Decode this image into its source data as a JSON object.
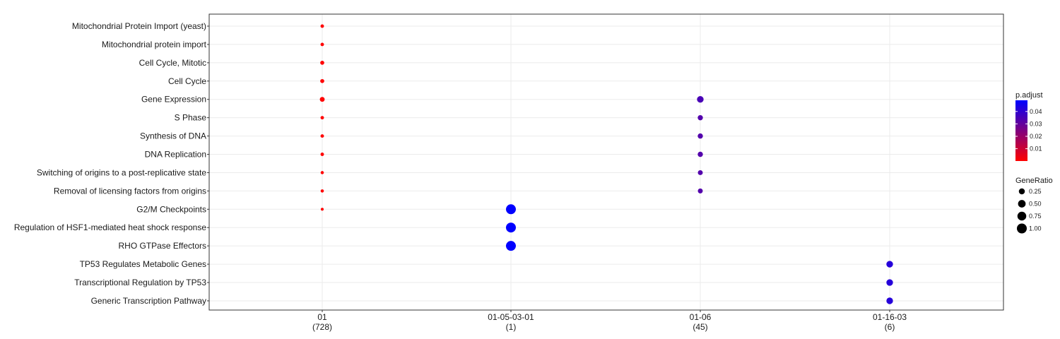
{
  "chart_data": {
    "type": "scatter",
    "title": "",
    "xlabel": "",
    "ylabel": "",
    "categories_x": [
      {
        "label": "01",
        "count": "(728)"
      },
      {
        "label": "01-05-03-01",
        "count": "(1)"
      },
      {
        "label": "01-06",
        "count": "(45)"
      },
      {
        "label": "01-16-03",
        "count": "(6)"
      }
    ],
    "categories_y": [
      "Mitochondrial Protein Import (yeast)",
      "Mitochondrial protein import",
      "Cell Cycle, Mitotic",
      "Cell Cycle",
      "Gene Expression",
      "S Phase",
      "Synthesis of DNA",
      "DNA Replication",
      "Switching of origins to a post-replicative state",
      "Removal of licensing factors from origins",
      "G2/M Checkpoints",
      "Regulation of HSF1-mediated heat shock response",
      "RHO GTPase Effectors",
      "TP53 Regulates Metabolic Genes",
      "Transcriptional Regulation by TP53",
      "Generic Transcription Pathway"
    ],
    "points": [
      {
        "x": "01",
        "y": "Mitochondrial Protein Import (yeast)",
        "gene_ratio": 0.03,
        "p_adjust": 0.0001
      },
      {
        "x": "01",
        "y": "Mitochondrial protein import",
        "gene_ratio": 0.03,
        "p_adjust": 0.0001
      },
      {
        "x": "01",
        "y": "Cell Cycle, Mitotic",
        "gene_ratio": 0.06,
        "p_adjust": 0.0001
      },
      {
        "x": "01",
        "y": "Cell Cycle",
        "gene_ratio": 0.06,
        "p_adjust": 0.0001
      },
      {
        "x": "01",
        "y": "Gene Expression",
        "gene_ratio": 0.12,
        "p_adjust": 0.0001
      },
      {
        "x": "01",
        "y": "S Phase",
        "gene_ratio": 0.03,
        "p_adjust": 0.0001
      },
      {
        "x": "01",
        "y": "Synthesis of DNA",
        "gene_ratio": 0.03,
        "p_adjust": 0.0001
      },
      {
        "x": "01",
        "y": "DNA Replication",
        "gene_ratio": 0.03,
        "p_adjust": 0.0001
      },
      {
        "x": "01",
        "y": "Switching of origins to a post-replicative state",
        "gene_ratio": 0.02,
        "p_adjust": 0.0001
      },
      {
        "x": "01",
        "y": "Removal of licensing factors from origins",
        "gene_ratio": 0.02,
        "p_adjust": 0.0001
      },
      {
        "x": "01",
        "y": "G2/M Checkpoints",
        "gene_ratio": 0.01,
        "p_adjust": 0.0001
      },
      {
        "x": "01-05-03-01",
        "y": "G2/M Checkpoints",
        "gene_ratio": 1.0,
        "p_adjust": 0.049
      },
      {
        "x": "01-05-03-01",
        "y": "Regulation of HSF1-mediated heat shock response",
        "gene_ratio": 1.0,
        "p_adjust": 0.049
      },
      {
        "x": "01-05-03-01",
        "y": "RHO GTPase Effectors",
        "gene_ratio": 1.0,
        "p_adjust": 0.049
      },
      {
        "x": "01-06",
        "y": "Gene Expression",
        "gene_ratio": 0.33,
        "p_adjust": 0.035
      },
      {
        "x": "01-06",
        "y": "S Phase",
        "gene_ratio": 0.16,
        "p_adjust": 0.033
      },
      {
        "x": "01-06",
        "y": "Synthesis of DNA",
        "gene_ratio": 0.16,
        "p_adjust": 0.033
      },
      {
        "x": "01-06",
        "y": "DNA Replication",
        "gene_ratio": 0.16,
        "p_adjust": 0.033
      },
      {
        "x": "01-06",
        "y": "Switching of origins to a post-replicative state",
        "gene_ratio": 0.13,
        "p_adjust": 0.033
      },
      {
        "x": "01-06",
        "y": "Removal of licensing factors from origins",
        "gene_ratio": 0.13,
        "p_adjust": 0.033
      },
      {
        "x": "01-16-03",
        "y": "TP53 Regulates Metabolic Genes",
        "gene_ratio": 0.33,
        "p_adjust": 0.042
      },
      {
        "x": "01-16-03",
        "y": "Transcriptional Regulation by TP53",
        "gene_ratio": 0.33,
        "p_adjust": 0.042
      },
      {
        "x": "01-16-03",
        "y": "Generic Transcription Pathway",
        "gene_ratio": 0.33,
        "p_adjust": 0.042
      }
    ],
    "color_scale": {
      "title": "p.adjust",
      "range": [
        0.0001,
        0.049
      ],
      "low_color": "#ff0000",
      "high_color": "#0000ff",
      "ticks": [
        0.01,
        0.02,
        0.03,
        0.04
      ],
      "tick_labels": [
        "0.01",
        "0.02",
        "0.03",
        "0.04"
      ]
    },
    "size_scale": {
      "title": "GeneRatio",
      "ticks": [
        0.25,
        0.5,
        0.75,
        1.0
      ],
      "tick_labels": [
        "0.25",
        "0.50",
        "0.75",
        "1.00"
      ]
    },
    "grid": true,
    "legend_position": "right"
  }
}
